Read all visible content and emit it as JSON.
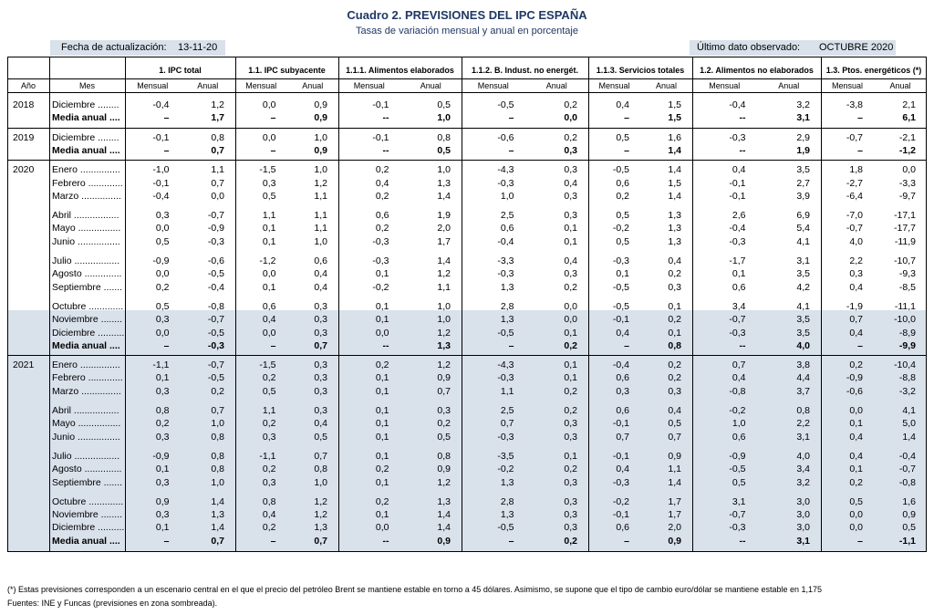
{
  "title": "Cuadro 2. PREVISIONES DEL IPC ESPAÑA",
  "subtitle": "Tasas de variación mensual y anual en porcentaje",
  "update_label": "Fecha de actualización:",
  "update_date": "13-11-20",
  "last_data_label": "Último dato observado:",
  "last_data_value": "OCTUBRE 2020",
  "colors": {
    "header_text": "#1f3864",
    "shade": "#d9e1eb"
  },
  "header": {
    "year": "Año",
    "month": "Mes",
    "groups": [
      "1. IPC total",
      "1.1. IPC subyacente",
      "1.1.1. Alimentos elaborados",
      "1.1.2. B. Indust. no energét.",
      "1.1.3. Servicios totales",
      "1.2. Alimentos no elaborados",
      "1.3. Ptos. energéticos (*)"
    ],
    "monthly": "Mensual",
    "annual": "Anual"
  },
  "rows": [
    {
      "year": "2018",
      "month": "Diciembre ........",
      "vals": [
        "-0,4",
        "1,2",
        "0,0",
        "0,9",
        "-0,1",
        "0,5",
        "-0,5",
        "0,2",
        "0,4",
        "1,5",
        "-0,4",
        "3,2",
        "-3,8",
        "2,1"
      ]
    },
    {
      "month": "Media anual ....",
      "media": true,
      "vals": [
        "–",
        "1,7",
        "–",
        "0,9",
        "--",
        "1,0",
        "–",
        "0,0",
        "–",
        "1,5",
        "--",
        "3,1",
        "–",
        "6,1"
      ]
    },
    {
      "year": "2019",
      "month": "Diciembre ........",
      "vals": [
        "-0,1",
        "0,8",
        "0,0",
        "1,0",
        "-0,1",
        "0,8",
        "-0,6",
        "0,2",
        "0,5",
        "1,6",
        "-0,3",
        "2,9",
        "-0,7",
        "-2,1"
      ]
    },
    {
      "month": "Media anual ....",
      "media": true,
      "vals": [
        "–",
        "0,7",
        "–",
        "0,9",
        "--",
        "0,5",
        "–",
        "0,3",
        "–",
        "1,4",
        "--",
        "1,9",
        "–",
        "-1,2"
      ]
    },
    {
      "year": "2020",
      "month": "Enero ...............",
      "vals": [
        "-1,0",
        "1,1",
        "-1,5",
        "1,0",
        "0,2",
        "1,0",
        "-4,3",
        "0,3",
        "-0,5",
        "1,4",
        "0,4",
        "3,5",
        "1,8",
        "0,0"
      ]
    },
    {
      "month": "Febrero .............",
      "vals": [
        "-0,1",
        "0,7",
        "0,3",
        "1,2",
        "0,4",
        "1,3",
        "-0,3",
        "0,4",
        "0,6",
        "1,5",
        "-0,1",
        "2,7",
        "-2,7",
        "-3,3"
      ]
    },
    {
      "month": "Marzo ...............",
      "vals": [
        "-0,4",
        "0,0",
        "0,5",
        "1,1",
        "0,2",
        "1,4",
        "1,0",
        "0,3",
        "0,2",
        "1,4",
        "-0,1",
        "3,9",
        "-6,4",
        "-9,7"
      ]
    },
    {
      "month": "Abril .................",
      "vals": [
        "0,3",
        "-0,7",
        "1,1",
        "1,1",
        "0,6",
        "1,9",
        "2,5",
        "0,3",
        "0,5",
        "1,3",
        "2,6",
        "6,9",
        "-7,0",
        "-17,1"
      ]
    },
    {
      "month": "Mayo ................",
      "vals": [
        "0,0",
        "-0,9",
        "0,1",
        "1,1",
        "0,2",
        "2,0",
        "0,6",
        "0,1",
        "-0,2",
        "1,3",
        "-0,4",
        "5,4",
        "-0,7",
        "-17,7"
      ]
    },
    {
      "month": "Junio ................",
      "vals": [
        "0,5",
        "-0,3",
        "0,1",
        "1,0",
        "-0,3",
        "1,7",
        "-0,4",
        "0,1",
        "0,5",
        "1,3",
        "-0,3",
        "4,1",
        "4,0",
        "-11,9"
      ]
    },
    {
      "month": "Julio .................",
      "vals": [
        "-0,9",
        "-0,6",
        "-1,2",
        "0,6",
        "-0,3",
        "1,4",
        "-3,3",
        "0,4",
        "-0,3",
        "0,4",
        "-1,7",
        "3,1",
        "2,2",
        "-10,7"
      ]
    },
    {
      "month": "Agosto ..............",
      "vals": [
        "0,0",
        "-0,5",
        "0,0",
        "0,4",
        "0,1",
        "1,2",
        "-0,3",
        "0,3",
        "0,1",
        "0,2",
        "0,1",
        "3,5",
        "0,3",
        "-9,3"
      ]
    },
    {
      "month": "Septiembre .......",
      "vals": [
        "0,2",
        "-0,4",
        "0,1",
        "0,4",
        "-0,2",
        "1,1",
        "1,3",
        "0,2",
        "-0,5",
        "0,3",
        "0,6",
        "4,2",
        "0,4",
        "-8,5"
      ]
    },
    {
      "month": "Octubre .............",
      "vals": [
        "0,5",
        "-0,8",
        "0,6",
        "0,3",
        "0,1",
        "1,0",
        "2,8",
        "0,0",
        "-0,5",
        "0,1",
        "3,4",
        "4,1",
        "-1,9",
        "-11,1"
      ]
    },
    {
      "month": "Noviembre ........",
      "vals": [
        "0,3",
        "-0,7",
        "0,4",
        "0,3",
        "0,1",
        "1,0",
        "1,3",
        "0,0",
        "-0,1",
        "0,2",
        "-0,7",
        "3,5",
        "0,7",
        "-10,0"
      ]
    },
    {
      "month": "Diciembre ..........",
      "vals": [
        "0,0",
        "-0,5",
        "0,0",
        "0,3",
        "0,0",
        "1,2",
        "-0,5",
        "0,1",
        "0,4",
        "0,1",
        "-0,3",
        "3,5",
        "0,4",
        "-8,9"
      ]
    },
    {
      "month": "Media anual ....",
      "media": true,
      "vals": [
        "–",
        "-0,3",
        "–",
        "0,7",
        "--",
        "1,3",
        "–",
        "0,2",
        "–",
        "0,8",
        "--",
        "4,0",
        "–",
        "-9,9"
      ]
    },
    {
      "year": "2021",
      "month": "Enero ...............",
      "vals": [
        "-1,1",
        "-0,7",
        "-1,5",
        "0,3",
        "0,2",
        "1,2",
        "-4,3",
        "0,1",
        "-0,4",
        "0,2",
        "0,7",
        "3,8",
        "0,2",
        "-10,4"
      ]
    },
    {
      "month": "Febrero .............",
      "vals": [
        "0,1",
        "-0,5",
        "0,2",
        "0,3",
        "0,1",
        "0,9",
        "-0,3",
        "0,1",
        "0,6",
        "0,2",
        "0,4",
        "4,4",
        "-0,9",
        "-8,8"
      ]
    },
    {
      "month": "Marzo ...............",
      "vals": [
        "0,3",
        "0,2",
        "0,5",
        "0,3",
        "0,1",
        "0,7",
        "1,1",
        "0,2",
        "0,3",
        "0,3",
        "-0,8",
        "3,7",
        "-0,6",
        "-3,2"
      ]
    },
    {
      "month": "Abril .................",
      "vals": [
        "0,8",
        "0,7",
        "1,1",
        "0,3",
        "0,1",
        "0,3",
        "2,5",
        "0,2",
        "0,6",
        "0,4",
        "-0,2",
        "0,8",
        "0,0",
        "4,1"
      ]
    },
    {
      "month": "Mayo ................",
      "vals": [
        "0,2",
        "1,0",
        "0,2",
        "0,4",
        "0,1",
        "0,2",
        "0,7",
        "0,3",
        "-0,1",
        "0,5",
        "1,0",
        "2,2",
        "0,1",
        "5,0"
      ]
    },
    {
      "month": "Junio ................",
      "vals": [
        "0,3",
        "0,8",
        "0,3",
        "0,5",
        "0,1",
        "0,5",
        "-0,3",
        "0,3",
        "0,7",
        "0,7",
        "0,6",
        "3,1",
        "0,4",
        "1,4"
      ]
    },
    {
      "month": "Julio .................",
      "vals": [
        "-0,9",
        "0,8",
        "-1,1",
        "0,7",
        "0,1",
        "0,8",
        "-3,5",
        "0,1",
        "-0,1",
        "0,9",
        "-0,9",
        "4,0",
        "0,4",
        "-0,4"
      ]
    },
    {
      "month": "Agosto ..............",
      "vals": [
        "0,1",
        "0,8",
        "0,2",
        "0,8",
        "0,2",
        "0,9",
        "-0,2",
        "0,2",
        "0,4",
        "1,1",
        "-0,5",
        "3,4",
        "0,1",
        "-0,7"
      ]
    },
    {
      "month": "Septiembre .......",
      "vals": [
        "0,3",
        "1,0",
        "0,3",
        "1,0",
        "0,1",
        "1,2",
        "1,3",
        "0,3",
        "-0,3",
        "1,4",
        "0,5",
        "3,2",
        "0,2",
        "-0,8"
      ]
    },
    {
      "month": "Octubre .............",
      "vals": [
        "0,9",
        "1,4",
        "0,8",
        "1,2",
        "0,2",
        "1,3",
        "2,8",
        "0,3",
        "-0,2",
        "1,7",
        "3,1",
        "3,0",
        "0,5",
        "1,6"
      ]
    },
    {
      "month": "Noviembre ........",
      "vals": [
        "0,3",
        "1,3",
        "0,4",
        "1,2",
        "0,1",
        "1,4",
        "1,3",
        "0,3",
        "-0,1",
        "1,7",
        "-0,7",
        "3,0",
        "0,0",
        "0,9"
      ]
    },
    {
      "month": "Diciembre ..........",
      "vals": [
        "0,1",
        "1,4",
        "0,2",
        "1,3",
        "0,0",
        "1,4",
        "-0,5",
        "0,3",
        "0,6",
        "2,0",
        "-0,3",
        "3,0",
        "0,0",
        "0,5"
      ]
    },
    {
      "month": "Media anual ....",
      "media": true,
      "vals": [
        "–",
        "0,7",
        "–",
        "0,7",
        "--",
        "0,9",
        "–",
        "0,2",
        "–",
        "0,9",
        "--",
        "3,1",
        "–",
        "-1,1"
      ]
    }
  ],
  "footnotes": [
    "(*) Estas previsiones corresponden a un escenario central en el que el precio del petróleo Brent se mantiene estable en torno a 45 dólares. Asimismo, se supone que el tipo de cambio euro/dólar se mantiene estable en 1,175",
    "Fuentes: INE y Funcas (previsiones en zona sombreada)."
  ]
}
